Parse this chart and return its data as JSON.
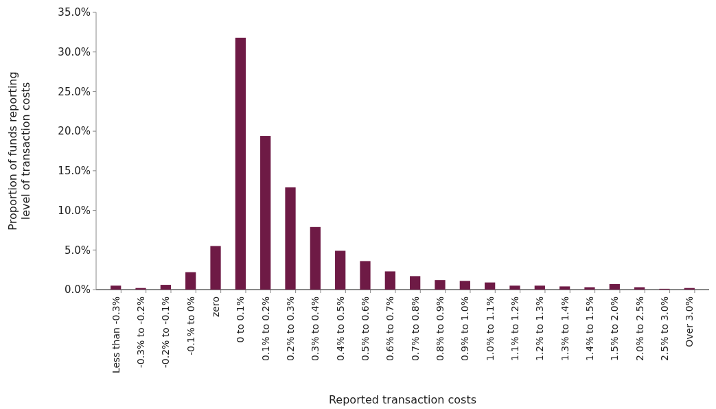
{
  "chart_data": {
    "type": "bar",
    "xlabel": "Reported transaction costs",
    "ylabel": "Proportion of funds reporting level of transaction costs",
    "categories": [
      "Less than -0.3%",
      "-0.3% to -0.2%",
      "-0.2% to -0.1%",
      "-0.1% to 0%",
      "zero",
      "0 to 0.1%",
      "0.1% to 0.2%",
      "0.2% to 0.3%",
      "0.3% to 0.4%",
      "0.4% to 0.5%",
      "0.5% to 0.6%",
      "0.6% to 0.7%",
      "0.7% to 0.8%",
      "0.8% to 0.9%",
      "0.9% to 1.0%",
      "1.0% to 1.1%",
      "1.1% to 1.2%",
      "1.2% to 1.3%",
      "1.3% to 1.4%",
      "1.4% to 1.5%",
      "1.5% to 2.0%",
      "2.0% to 2.5%",
      "2.5% to 3.0%",
      "Over 3.0%"
    ],
    "values": [
      0.5,
      0.2,
      0.6,
      2.2,
      5.5,
      31.8,
      19.4,
      12.9,
      7.9,
      4.9,
      3.6,
      2.3,
      1.7,
      1.2,
      1.1,
      0.9,
      0.5,
      0.5,
      0.4,
      0.3,
      0.7,
      0.3,
      0.1,
      0.2
    ],
    "color": "#6e1a45",
    "ylim": [
      0,
      35
    ],
    "yticks": [
      {
        "value": 0,
        "label": "0.0%"
      },
      {
        "value": 5,
        "label": "5.0%"
      },
      {
        "value": 10,
        "label": "10.0%"
      },
      {
        "value": 15,
        "label": "15.0%"
      },
      {
        "value": 20,
        "label": "20.0%"
      },
      {
        "value": 25,
        "label": "25.0%"
      },
      {
        "value": 30,
        "label": "30.0%"
      },
      {
        "value": 35,
        "label": "35.0%"
      }
    ],
    "grid": false
  }
}
